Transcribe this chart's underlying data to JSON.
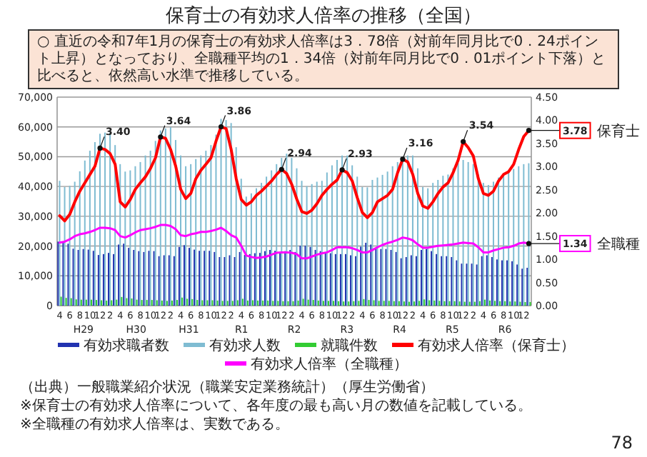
{
  "chart_data": {
    "type": "bar",
    "title": "保育士の有効求人倍率の推移（全国）",
    "subtitle": "○ 直近の令和7年1月の保育士の有効求人倍率は3．78倍（対前年同月比で0．24ポイント上昇）となっており、全職種平均の1．34倍（対前年同月比で0．01ポイント下落）と比べると、依然高い水準で推移している。",
    "categories": [
      "4",
      null,
      "6",
      null,
      "8",
      null,
      "10",
      null,
      "12",
      null,
      "2",
      null,
      "4",
      null,
      "6",
      null,
      "8",
      null,
      "10",
      null,
      "12",
      null,
      "2",
      null,
      "4",
      null,
      "6",
      null,
      "8",
      null,
      "10",
      null,
      "12",
      null,
      "2",
      null,
      "4",
      null,
      "6",
      null,
      "8",
      null,
      "10",
      null,
      "12",
      null,
      "2",
      null,
      "4",
      null,
      "6",
      null,
      "8",
      null,
      "10",
      null,
      "12",
      null,
      "2",
      null,
      "4",
      null,
      "6",
      null,
      "8",
      null,
      "10",
      null,
      "12",
      null,
      "2",
      null,
      "4",
      null,
      "6",
      null,
      "8",
      null,
      "10",
      null,
      "12",
      null,
      "2",
      null,
      "4",
      null,
      "6",
      null,
      "8",
      null,
      "10",
      null,
      "12",
      null
    ],
    "ylim": [
      0,
      70000
    ],
    "yticks": [
      {
        "value": 0,
        "label": "0"
      },
      {
        "value": 10000,
        "label": "10,000"
      },
      {
        "value": 20000,
        "label": "20,000"
      },
      {
        "value": 30000,
        "label": "30,000"
      },
      {
        "value": 40000,
        "label": "40,000"
      },
      {
        "value": 50000,
        "label": "50,000"
      },
      {
        "value": 60000,
        "label": "60,000"
      },
      {
        "value": 70000,
        "label": "70,000"
      }
    ],
    "y2lim": [
      0,
      4.5
    ],
    "y2ticks": [
      {
        "value": 0,
        "label": "0.00"
      },
      {
        "value": 0.5,
        "label": "0.50"
      },
      {
        "value": 1,
        "label": "1.00"
      },
      {
        "value": 1.5,
        "label": "1.50"
      },
      {
        "value": 2,
        "label": "2.00"
      },
      {
        "value": 2.5,
        "label": "2.50"
      },
      {
        "value": 3,
        "label": "3.00"
      },
      {
        "value": 3.5,
        "label": "3.50"
      },
      {
        "value": 4,
        "label": "4.00"
      },
      {
        "value": 4.5,
        "label": "4.50"
      }
    ],
    "grid": "y",
    "legend": "bottom",
    "series": [
      {
        "name": "有効求職者数",
        "color": "#2233b0",
        "values": [
          21500,
          21100,
          20800,
          19100,
          18700,
          19000,
          18800,
          18400,
          17000,
          17300,
          17700,
          17300,
          20500,
          20800,
          19400,
          18700,
          18300,
          18000,
          18400,
          18300,
          16600,
          16900,
          16900,
          16600,
          19700,
          20300,
          19400,
          18800,
          18400,
          18400,
          18400,
          18000,
          16300,
          16300,
          16900,
          16300,
          18000,
          17000,
          17300,
          17600,
          17700,
          18300,
          18700,
          18400,
          18000,
          18300,
          18700,
          18000,
          20100,
          20100,
          19700,
          18700,
          18300,
          18000,
          17600,
          17300,
          17300,
          17300,
          16900,
          16600,
          19800,
          21100,
          20500,
          19400,
          19000,
          19000,
          18700,
          18000,
          15900,
          16300,
          16900,
          16600,
          18700,
          19000,
          18300,
          17300,
          16600,
          16600,
          16300,
          15200,
          14100,
          14100,
          14100,
          13800,
          16600,
          16900,
          16300,
          15500,
          15200,
          15200,
          14900,
          13800,
          12400,
          12700
        ]
      },
      {
        "name": "有効求人数",
        "color": "#7fbcd2",
        "values": [
          41900,
          39800,
          40200,
          41600,
          45100,
          48700,
          52000,
          54900,
          57700,
          58100,
          58100,
          53900,
          47500,
          45000,
          45400,
          46800,
          48200,
          50400,
          52000,
          55300,
          58800,
          59500,
          59900,
          55600,
          50400,
          46800,
          47500,
          49200,
          50400,
          52000,
          53900,
          57400,
          62700,
          62300,
          61300,
          53200,
          42600,
          36600,
          37700,
          39400,
          41200,
          43300,
          45400,
          47500,
          49600,
          51000,
          49600,
          46100,
          41900,
          40100,
          40800,
          41600,
          41900,
          44700,
          47100,
          48900,
          50400,
          50400,
          47100,
          43300,
          39800,
          39700,
          42200,
          43000,
          43900,
          45000,
          46800,
          48200,
          50100,
          50400,
          50400,
          46100,
          39800,
          39400,
          41200,
          42200,
          43600,
          44000,
          46100,
          47800,
          48900,
          48200,
          47500,
          44000,
          41200,
          40500,
          41600,
          43000,
          44000,
          45000,
          45900,
          46800,
          47500,
          47800
        ]
      },
      {
        "name": "就職件数",
        "color": "#33cc33",
        "values": [
          3000,
          2600,
          2500,
          2100,
          2000,
          2000,
          2000,
          1900,
          1800,
          1700,
          1800,
          2000,
          2900,
          2500,
          2400,
          2000,
          1900,
          1900,
          1900,
          1800,
          1700,
          1600,
          1700,
          1900,
          2700,
          2300,
          2200,
          1900,
          1800,
          1800,
          1800,
          1700,
          1600,
          1600,
          1600,
          1800,
          2300,
          1700,
          1800,
          1700,
          1700,
          1700,
          1600,
          1600,
          1500,
          1500,
          1500,
          1700,
          2300,
          2000,
          1900,
          1700,
          1600,
          1600,
          1600,
          1500,
          1400,
          1400,
          1500,
          1600,
          2200,
          1900,
          1800,
          1600,
          1600,
          1600,
          1500,
          1500,
          1400,
          1300,
          1400,
          1600,
          2100,
          1800,
          1700,
          1600,
          1500,
          1500,
          1500,
          1400,
          1300,
          1300,
          1300,
          1500,
          2000,
          1700,
          1600,
          1500,
          1500,
          1400,
          1400,
          1300,
          1200,
          1200
        ]
      },
      {
        "name": "有効求人倍率（保育士）",
        "type": "line",
        "axis": "y2",
        "color": "#ff0000",
        "values": [
          1.94,
          1.83,
          1.97,
          2.24,
          2.47,
          2.65,
          2.83,
          3.01,
          3.4,
          3.37,
          3.28,
          3.05,
          2.24,
          2.13,
          2.29,
          2.51,
          2.65,
          2.78,
          2.96,
          3.19,
          3.64,
          3.61,
          3.37,
          3.01,
          2.51,
          2.31,
          2.42,
          2.74,
          2.92,
          3.05,
          3.19,
          3.55,
          3.86,
          3.82,
          3.37,
          2.74,
          2.29,
          2.17,
          2.24,
          2.38,
          2.47,
          2.58,
          2.69,
          2.83,
          2.94,
          2.85,
          2.62,
          2.3,
          2.03,
          1.99,
          2.06,
          2.2,
          2.38,
          2.51,
          2.62,
          2.71,
          2.93,
          2.87,
          2.69,
          2.33,
          2.01,
          1.9,
          2.01,
          2.24,
          2.31,
          2.38,
          2.51,
          2.87,
          3.16,
          3.1,
          2.83,
          2.42,
          2.15,
          2.1,
          2.24,
          2.42,
          2.56,
          2.65,
          2.87,
          3.14,
          3.54,
          3.41,
          3.23,
          2.74,
          2.42,
          2.38,
          2.47,
          2.69,
          2.83,
          2.89,
          3.05,
          3.37,
          3.65,
          3.78
        ],
        "value_labels": [
          null,
          null,
          null,
          null,
          null,
          null,
          null,
          null,
          "3.40",
          null,
          null,
          null,
          null,
          null,
          null,
          null,
          null,
          null,
          null,
          null,
          "3.64",
          null,
          null,
          null,
          null,
          null,
          null,
          null,
          null,
          null,
          null,
          null,
          "3.86",
          null,
          null,
          null,
          null,
          null,
          null,
          null,
          null,
          null,
          null,
          null,
          "2.94",
          null,
          null,
          null,
          null,
          null,
          null,
          null,
          null,
          null,
          null,
          null,
          "2.93",
          null,
          null,
          null,
          null,
          null,
          null,
          null,
          null,
          null,
          null,
          null,
          "3.16",
          null,
          null,
          null,
          null,
          null,
          null,
          null,
          null,
          null,
          null,
          null,
          "3.54",
          null,
          null,
          null,
          null,
          null,
          null,
          null,
          null,
          null,
          null,
          null,
          null,
          "3.78"
        ]
      },
      {
        "name": "有効求人倍率（全職種）",
        "type": "line",
        "axis": "y2",
        "color": "#ff00ff",
        "values": [
          1.36,
          1.38,
          1.43,
          1.5,
          1.54,
          1.56,
          1.59,
          1.63,
          1.68,
          1.68,
          1.67,
          1.63,
          1.5,
          1.47,
          1.52,
          1.58,
          1.63,
          1.65,
          1.67,
          1.7,
          1.74,
          1.74,
          1.72,
          1.65,
          1.52,
          1.5,
          1.54,
          1.56,
          1.59,
          1.59,
          1.61,
          1.64,
          1.68,
          1.61,
          1.52,
          1.47,
          1.29,
          1.08,
          1.05,
          1.03,
          1.04,
          1.06,
          1.1,
          1.14,
          1.15,
          1.15,
          1.14,
          1.11,
          1.02,
          1.02,
          1.06,
          1.1,
          1.13,
          1.15,
          1.2,
          1.26,
          1.26,
          1.26,
          1.24,
          1.2,
          1.15,
          1.15,
          1.2,
          1.26,
          1.31,
          1.35,
          1.38,
          1.42,
          1.47,
          1.45,
          1.41,
          1.32,
          1.25,
          1.25,
          1.27,
          1.29,
          1.3,
          1.31,
          1.32,
          1.34,
          1.36,
          1.35,
          1.34,
          1.26,
          1.15,
          1.15,
          1.19,
          1.22,
          1.25,
          1.26,
          1.29,
          1.34,
          1.36,
          1.34
        ],
        "value_labels": [
          null,
          null,
          null,
          null,
          null,
          null,
          null,
          null,
          null,
          null,
          null,
          null,
          null,
          null,
          null,
          null,
          null,
          null,
          null,
          null,
          null,
          null,
          null,
          null,
          null,
          null,
          null,
          null,
          null,
          null,
          null,
          null,
          null,
          null,
          null,
          null,
          null,
          null,
          null,
          null,
          null,
          null,
          null,
          null,
          null,
          null,
          null,
          null,
          null,
          null,
          null,
          null,
          null,
          null,
          null,
          null,
          null,
          null,
          null,
          null,
          null,
          null,
          null,
          null,
          null,
          null,
          null,
          null,
          null,
          null,
          null,
          null,
          null,
          null,
          null,
          null,
          null,
          null,
          null,
          null,
          null,
          null,
          null,
          null,
          null,
          null,
          null,
          null,
          null,
          null,
          null,
          null,
          null,
          "1.34"
        ]
      }
    ],
    "annotations": [
      "H29",
      "H30",
      "H31",
      "R1",
      "R2",
      "R3",
      "R4",
      "R5",
      "R6",
      "保育士",
      "全職種",
      "（出典）一般職業紹介状況（職業安定業務統計）（厚生労働省）",
      "※保育士の有効求人倍率について、各年度の最も高い月の数値を記載している。",
      "※全職種の有効求人倍率は、実数である。",
      "78"
    ]
  }
}
